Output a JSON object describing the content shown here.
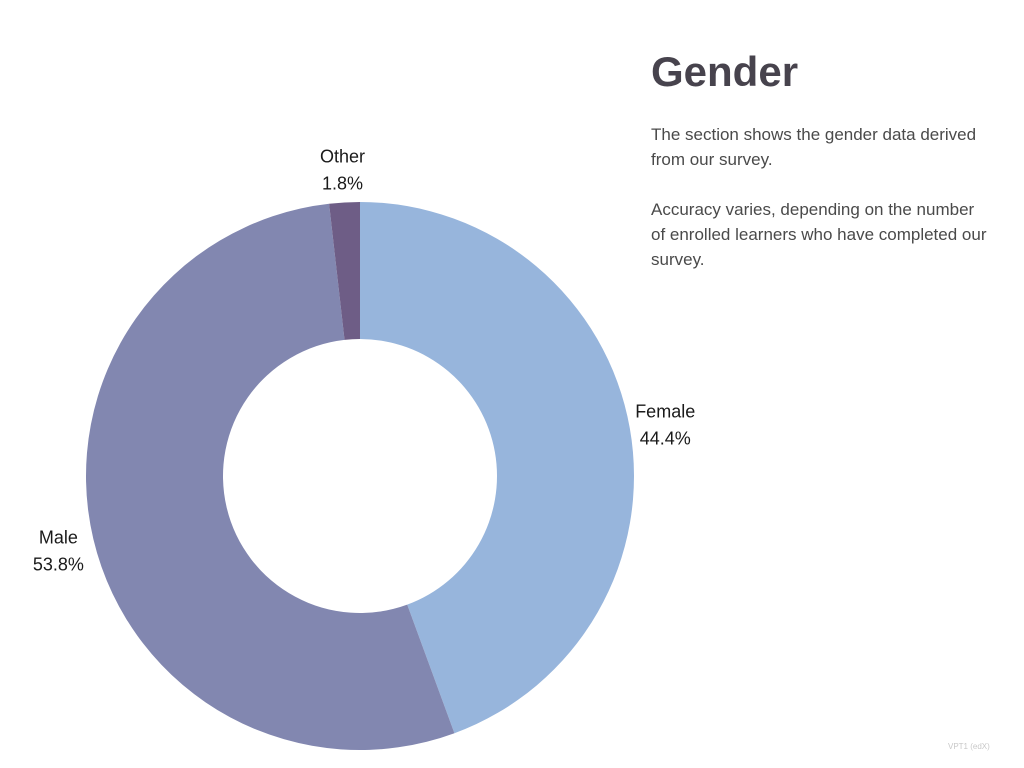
{
  "page": {
    "title": "Gender",
    "description_1": "The section shows the gender data derived from our survey.",
    "description_2": "Accuracy varies, depending on the number of enrolled learners who have completed our survey.",
    "footer_note": "VPT1 (edX)"
  },
  "chart_data": {
    "type": "pie",
    "donut": true,
    "start_at": "top",
    "direction": "clockwise",
    "slices": [
      {
        "name": "Female",
        "value": 44.4,
        "label": "44.4%",
        "color": "#97b5dc"
      },
      {
        "name": "Male",
        "value": 53.8,
        "label": "53.8%",
        "color": "#8287b0"
      },
      {
        "name": "Other",
        "value": 1.8,
        "label": "1.8%",
        "color": "#6e5d86"
      }
    ]
  }
}
